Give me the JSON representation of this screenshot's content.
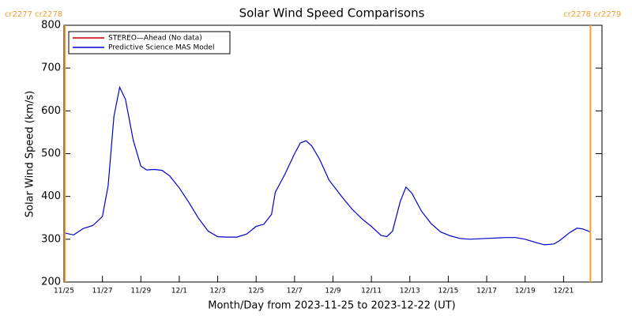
{
  "chart_data": {
    "type": "line",
    "title": "Solar Wind Speed Comparisons",
    "xlabel": "Month/Day from 2023-11-25 to 2023-12-22 (UT)",
    "ylabel": "Solar Wind Speed (km/s)",
    "xlim": [
      0,
      28
    ],
    "xticks": [
      {
        "value": 0,
        "label": "11/25"
      },
      {
        "value": 2,
        "label": "11/27"
      },
      {
        "value": 4,
        "label": "11/29"
      },
      {
        "value": 6,
        "label": "12/1"
      },
      {
        "value": 8,
        "label": "12/3"
      },
      {
        "value": 10,
        "label": "12/5"
      },
      {
        "value": 12,
        "label": "12/7"
      },
      {
        "value": 14,
        "label": "12/9"
      },
      {
        "value": 16,
        "label": "12/11"
      },
      {
        "value": 18,
        "label": "12/13"
      },
      {
        "value": 20,
        "label": "12/15"
      },
      {
        "value": 22,
        "label": "12/17"
      },
      {
        "value": 24,
        "label": "12/19"
      },
      {
        "value": 26,
        "label": "12/21"
      }
    ],
    "ylim": [
      200,
      800
    ],
    "yticks": [
      200,
      300,
      400,
      500,
      600,
      700,
      800
    ],
    "legend": "upper left",
    "series": [
      {
        "name": "STEREO—Ahead (No data)",
        "color": "#c00000",
        "x": [],
        "values": []
      },
      {
        "name": "Predictive Science MAS Model",
        "color": "#0000cc",
        "x": [
          0,
          0.5,
          1,
          1.5,
          2,
          2.3,
          2.6,
          2.9,
          3.2,
          3.6,
          4,
          4.3,
          4.7,
          5.1,
          5.5,
          6,
          6.5,
          7,
          7.5,
          8,
          8.5,
          9,
          9.5,
          10,
          10.4,
          10.8,
          11,
          11.5,
          12,
          12.3,
          12.6,
          12.9,
          13.3,
          13.8,
          14.5,
          15,
          15.5,
          16,
          16.5,
          16.8,
          17.1,
          17.5,
          17.8,
          18.1,
          18.6,
          19.1,
          19.6,
          20.1,
          20.6,
          21.1,
          22,
          23,
          23.5,
          24,
          24.5,
          25,
          25.5,
          25.8,
          26.3,
          26.7,
          27,
          27.4
        ],
        "values": [
          315,
          310,
          325,
          332,
          353,
          425,
          587,
          655,
          627,
          532,
          471,
          462,
          463,
          461,
          448,
          420,
          386,
          349,
          319,
          306,
          305,
          305,
          312,
          330,
          335,
          358,
          410,
          452,
          500,
          525,
          530,
          518,
          487,
          438,
          397,
          370,
          348,
          330,
          309,
          306,
          319,
          388,
          422,
          408,
          366,
          337,
          317,
          308,
          302,
          300,
          302,
          304,
          304,
          300,
          293,
          287,
          289,
          297,
          315,
          326,
          324,
          317
        ]
      }
    ],
    "annotations": [
      {
        "text": "cr2277 cr2278",
        "x": 0.05,
        "color": "#f0a030"
      },
      {
        "text": "cr2278 cr2279",
        "x": 27.4,
        "color": "#f0a030"
      }
    ]
  }
}
